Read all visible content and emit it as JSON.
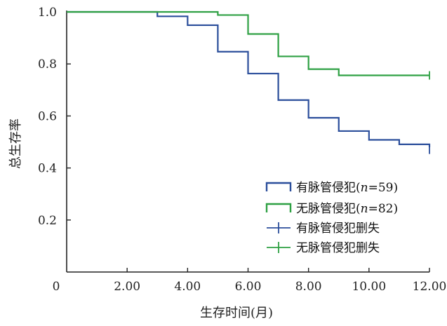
{
  "chart_data": {
    "type": "line",
    "subtype": "kaplan-meier-step",
    "xlabel": "生存时间(月)",
    "ylabel": "总生存率",
    "xlim": [
      0,
      12
    ],
    "ylim": [
      0,
      1.0
    ],
    "x_ticks": [
      0,
      2,
      4,
      6,
      8,
      10,
      12
    ],
    "x_tick_labels": [
      "0",
      "2.00",
      "4.00",
      "6.00",
      "8.00",
      "10.00",
      "12.00"
    ],
    "y_ticks": [
      0.2,
      0.4,
      0.6,
      0.8,
      1.0
    ],
    "y_tick_labels": [
      "0.2",
      "0.4",
      "0.6",
      "0.8",
      "1.0"
    ],
    "grid": false,
    "legend_position": "bottom-right",
    "series": [
      {
        "legend": "有脉管侵犯(n=59)",
        "color": "#2b4e9b",
        "x": [
          0,
          3,
          4,
          5,
          6,
          7,
          8,
          9,
          10,
          11,
          12
        ],
        "y": [
          1.0,
          0.983,
          0.949,
          0.847,
          0.763,
          0.661,
          0.593,
          0.542,
          0.508,
          0.491,
          0.48
        ]
      },
      {
        "legend": "无脉管侵犯(n=82)",
        "color": "#2ea043",
        "x": [
          0,
          5,
          6,
          7,
          8,
          9,
          12
        ],
        "y": [
          1.0,
          0.988,
          0.915,
          0.829,
          0.78,
          0.756,
          0.756
        ]
      }
    ],
    "censor_legend": [
      {
        "legend": "有脉管侵犯删失",
        "color": "#2b4e9b"
      },
      {
        "legend": "无脉管侵犯删失",
        "color": "#2ea043"
      }
    ],
    "censored_points": [
      {
        "series": 0,
        "x": 12,
        "y": 0.47
      },
      {
        "series": 1,
        "x": 12,
        "y": 0.756
      }
    ],
    "legend_n_prefix": "(",
    "legend_n_var": "n",
    "legend_n_values": [
      "=59)",
      "=82)"
    ],
    "legend_names": [
      "有脉管侵犯",
      "无脉管侵犯"
    ]
  }
}
